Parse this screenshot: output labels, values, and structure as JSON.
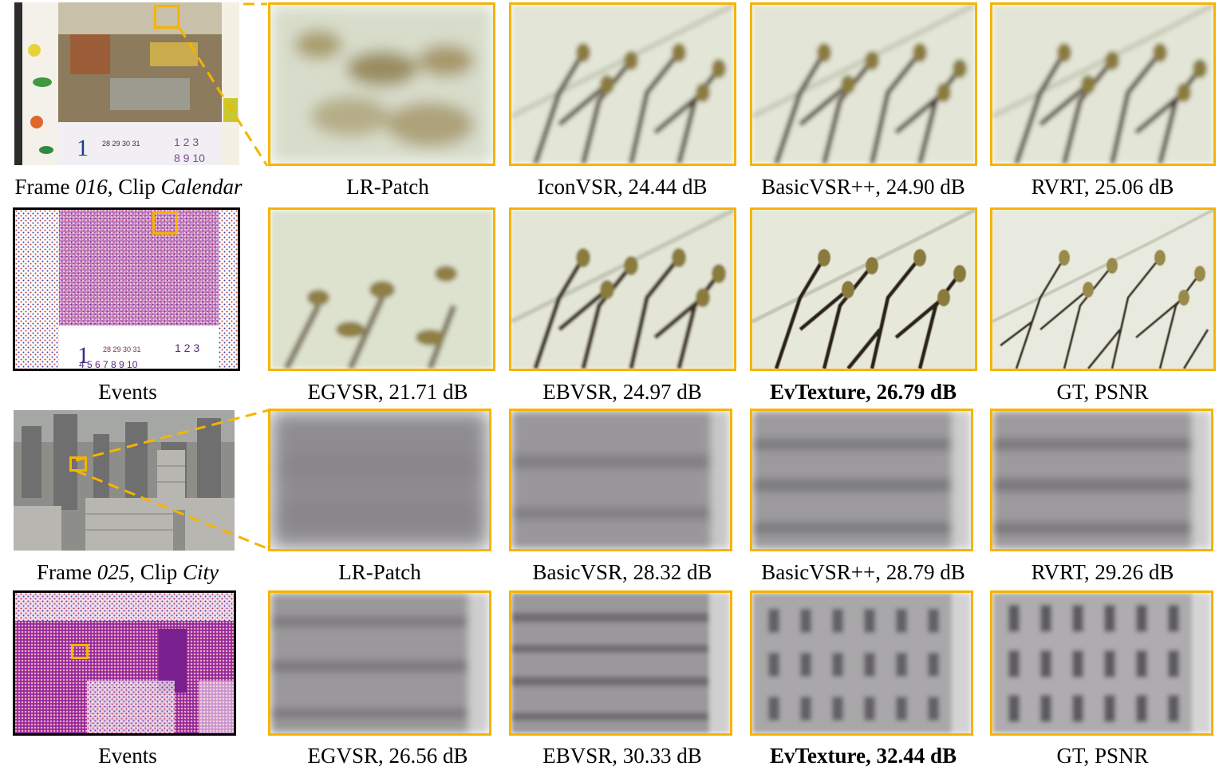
{
  "accent_color": "#f5b400",
  "rows": [
    {
      "thumb_caption": {
        "pre": "Frame ",
        "frame": "016",
        "mid": ", Clip ",
        "clip": "Calendar"
      },
      "labels": [
        "LR-Patch",
        "IconVSR, 24.44 dB",
        "BasicVSR++, 24.90 dB",
        "RVRT, 25.06 dB"
      ]
    },
    {
      "thumb_caption": {
        "text": "Events"
      },
      "labels": [
        "EGVSR, 21.71 dB",
        "EBVSR, 24.97 dB",
        "EvTexture, 26.79 dB",
        "GT, PSNR"
      ]
    },
    {
      "thumb_caption": {
        "pre": "Frame ",
        "frame": "025",
        "mid": ", Clip ",
        "clip": "City"
      },
      "labels": [
        "LR-Patch",
        "BasicVSR, 28.32 dB",
        "BasicVSR++, 28.79 dB",
        "RVRT, 29.26 dB"
      ]
    },
    {
      "thumb_caption": {
        "text": "Events"
      },
      "labels": [
        "EGVSR, 26.56 dB",
        "EBVSR, 30.33 dB",
        "EvTexture, 32.44 dB",
        "GT, PSNR"
      ]
    }
  ]
}
